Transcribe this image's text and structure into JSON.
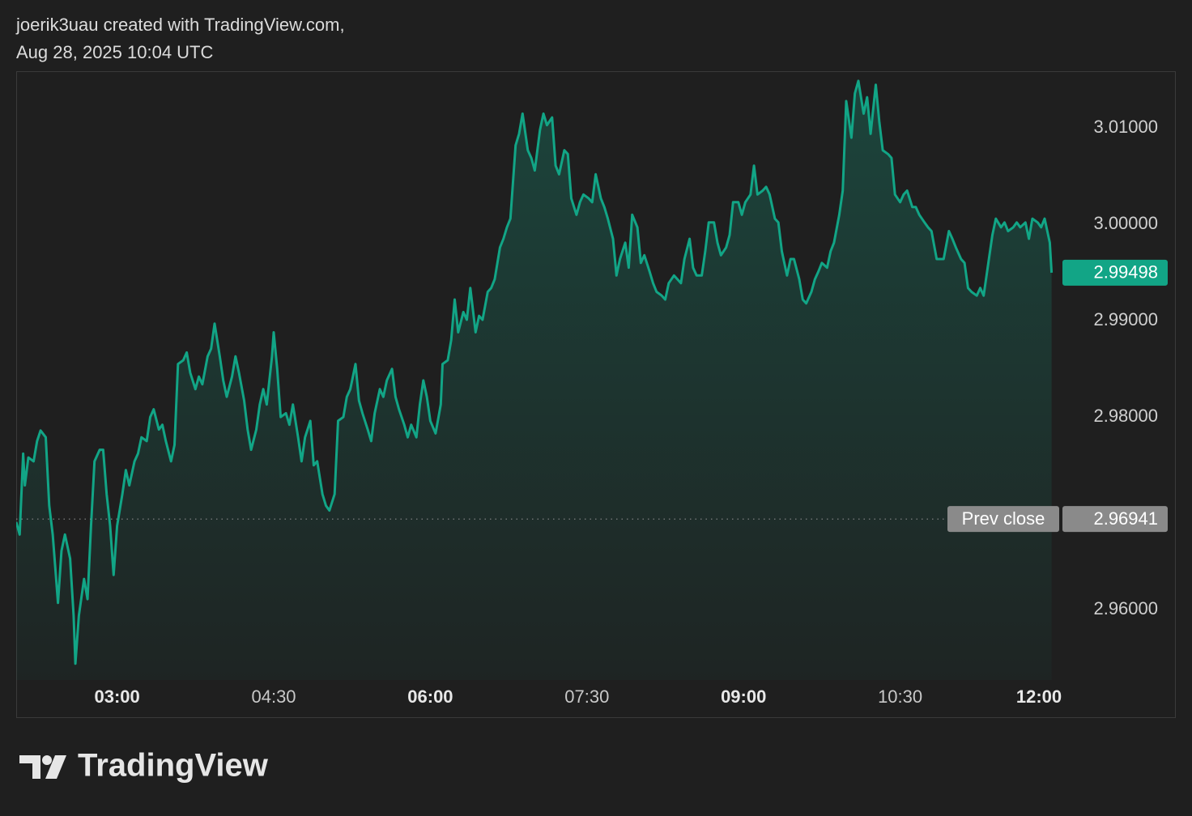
{
  "chart_data": {
    "type": "area",
    "header": [
      "joerik3uau created with TradingView.com,",
      "Aug 28, 2025 10:04 UTC"
    ],
    "brand": "TradingView",
    "color": "#12a586",
    "grid": false,
    "x": [
      122,
      124,
      126,
      127,
      129,
      132,
      134,
      136,
      139,
      141,
      143,
      146,
      148,
      150,
      153,
      155,
      156,
      158,
      161,
      163,
      165,
      167,
      170,
      172,
      174,
      176,
      178,
      180,
      183,
      185,
      187,
      190,
      192,
      194,
      197,
      199,
      201,
      204,
      206,
      208,
      211,
      213,
      215,
      218,
      220,
      222,
      225,
      227,
      229,
      232,
      234,
      236,
      239,
      241,
      243,
      246,
      248,
      250,
      253,
      255,
      257,
      260,
      262,
      264,
      266,
      269,
      270,
      272,
      274,
      277,
      279,
      281,
      284,
      286,
      288,
      291,
      293,
      295,
      298,
      300,
      302,
      305,
      307,
      310,
      312,
      314,
      317,
      319,
      321,
      324,
      326,
      328,
      331,
      333,
      335,
      338,
      340,
      342,
      345,
      347,
      349,
      352,
      354,
      356,
      358,
      360,
      363,
      366,
      367,
      370,
      372,
      374,
      376,
      379,
      381,
      383,
      386,
      388,
      390,
      393,
      395,
      397,
      400,
      402,
      404,
      406,
      409,
      411,
      413,
      416,
      418,
      420,
      423,
      425,
      427,
      430,
      432,
      434,
      437,
      439,
      441,
      444,
      446,
      448,
      451,
      453,
      455,
      458,
      460,
      462,
      465,
      467,
      469,
      472,
      474,
      476,
      479,
      481,
      483,
      486,
      488,
      490,
      493,
      495,
      497,
      500,
      502,
      504,
      506,
      509,
      511,
      513,
      516,
      518,
      520,
      523,
      525,
      527,
      530,
      532,
      534,
      537,
      539,
      541,
      544,
      546,
      548,
      551,
      553,
      555,
      558,
      560,
      562,
      565,
      567,
      569,
      572,
      574,
      576,
      579,
      581,
      583,
      585,
      588,
      590,
      592,
      595,
      597,
      599,
      602,
      604,
      606,
      609,
      611,
      613,
      616,
      618,
      620,
      623,
      625,
      627,
      630,
      632,
      634,
      637,
      639,
      641,
      644,
      646,
      648,
      651,
      653,
      655,
      658,
      660,
      662,
      665,
      667,
      669,
      671,
      674,
      676,
      678,
      681,
      683,
      685,
      688,
      690,
      692,
      695,
      697,
      699,
      702,
      704,
      706,
      709,
      711,
      713,
      716,
      717
    ],
    "values": [
      2.9691,
      2.9678,
      2.9762,
      2.9729,
      2.9758,
      2.9754,
      2.9775,
      2.9786,
      2.9779,
      2.9708,
      2.9678,
      2.9607,
      2.9661,
      2.9678,
      2.9653,
      2.9594,
      2.9544,
      2.9594,
      2.9632,
      2.9611,
      2.9687,
      2.9754,
      2.9766,
      2.9766,
      2.972,
      2.9687,
      2.9636,
      2.9687,
      2.972,
      2.9745,
      2.9729,
      2.9754,
      2.9762,
      2.9779,
      2.9775,
      2.98,
      2.9808,
      2.9787,
      2.9792,
      2.9775,
      2.9754,
      2.9771,
      2.9855,
      2.9859,
      2.9867,
      2.9846,
      2.9829,
      2.9842,
      2.9834,
      2.9863,
      2.9871,
      2.9897,
      2.9863,
      2.9838,
      2.9821,
      2.9842,
      2.9863,
      2.9846,
      2.9817,
      2.9787,
      2.9766,
      2.9787,
      2.9813,
      2.9829,
      2.9813,
      2.9863,
      2.9888,
      2.985,
      2.98,
      2.9804,
      2.9792,
      2.9813,
      2.9779,
      2.9754,
      2.9779,
      2.9796,
      2.975,
      2.9754,
      2.972,
      2.9708,
      2.9703,
      2.972,
      2.9796,
      2.98,
      2.9821,
      2.9829,
      2.9855,
      2.9817,
      2.9804,
      2.9787,
      2.9775,
      2.9804,
      2.9829,
      2.9821,
      2.9838,
      2.985,
      2.9821,
      2.9808,
      2.9792,
      2.9779,
      2.9792,
      2.9779,
      2.9813,
      2.9838,
      2.9821,
      2.9796,
      2.9783,
      2.9813,
      2.9855,
      2.9859,
      2.988,
      2.9922,
      2.9888,
      2.9909,
      2.9901,
      2.9934,
      2.9888,
      2.9905,
      2.9901,
      2.993,
      2.9934,
      2.9943,
      2.9976,
      2.9985,
      2.9997,
      3.0006,
      3.0082,
      3.0094,
      3.0115,
      3.0077,
      3.0069,
      3.0056,
      3.0098,
      3.0115,
      3.0103,
      3.0111,
      3.0061,
      3.0052,
      3.0077,
      3.0073,
      3.0027,
      3.001,
      3.0023,
      3.0031,
      3.0027,
      3.0023,
      3.0052,
      3.0027,
      3.0018,
      3.0006,
      2.9985,
      2.9947,
      2.9964,
      2.9981,
      2.9955,
      3.001,
      2.9997,
      2.996,
      2.9968,
      2.9951,
      2.9939,
      2.993,
      2.9926,
      2.9922,
      2.9939,
      2.9947,
      2.9943,
      2.9939,
      2.9964,
      2.9985,
      2.9955,
      2.9947,
      2.9947,
      2.9972,
      3.0002,
      3.0002,
      2.9981,
      2.9968,
      2.9976,
      2.9989,
      3.0023,
      3.0023,
      3.001,
      3.0023,
      3.0031,
      3.0061,
      3.0031,
      3.0035,
      3.0039,
      3.0031,
      3.0006,
      3.0002,
      2.9972,
      2.9947,
      2.9964,
      2.9964,
      2.9943,
      2.9922,
      2.9918,
      2.993,
      2.9943,
      2.9951,
      2.996,
      2.9955,
      2.9972,
      2.9981,
      3.001,
      3.0035,
      3.0128,
      3.009,
      3.0136,
      3.0149,
      3.0115,
      3.0132,
      3.0094,
      3.0145,
      3.0107,
      3.0077,
      3.0073,
      3.0069,
      3.0031,
      3.0023,
      3.0031,
      3.0035,
      3.0018,
      3.0018,
      3.001,
      3.0002,
      2.9997,
      2.9993,
      2.9964,
      2.9964,
      2.9964,
      2.9993,
      2.9985,
      2.9976,
      2.9964,
      2.996,
      2.9934,
      2.993,
      2.9926,
      2.9934,
      2.9926,
      2.9964,
      2.9989,
      3.0006,
      2.9997,
      3.0002,
      2.9993,
      2.9997,
      3.0002,
      2.9997,
      3.0002,
      2.9985,
      3.0006,
      3.0002,
      2.9997,
      3.0006,
      2.9981,
      2.99498
    ],
    "xlim": [
      122,
      720
    ],
    "xticks": [
      {
        "value": 180,
        "label": "03:00"
      },
      {
        "value": 270,
        "label": "04:30"
      },
      {
        "value": 360,
        "label": "06:00"
      },
      {
        "value": 450,
        "label": "07:30"
      },
      {
        "value": 540,
        "label": "09:00"
      },
      {
        "value": 630,
        "label": "10:30"
      },
      {
        "value": 720,
        "label": "12:00"
      }
    ],
    "ylim": [
      2.9527,
      3.0159
    ],
    "yticks": [
      {
        "value": 3.01,
        "label": "3.01000"
      },
      {
        "value": 3.0,
        "label": "3.00000"
      },
      {
        "value": 2.99,
        "label": "2.99000"
      },
      {
        "value": 2.98,
        "label": "2.98000"
      },
      {
        "value": 2.96,
        "label": "2.96000"
      }
    ],
    "prev_close": {
      "label": "Prev close",
      "value": 2.96941
    }
  }
}
